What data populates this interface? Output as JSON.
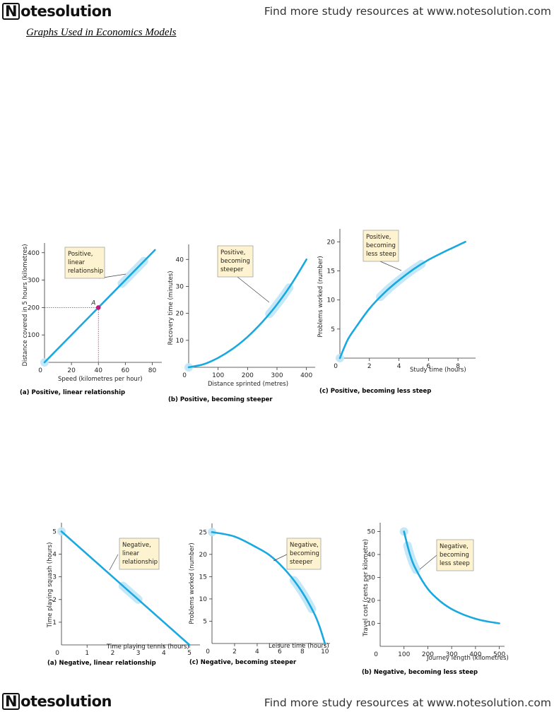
{
  "header": {
    "logo": "Notesolution",
    "promo": "Find more study resources at www.notesolution.com"
  },
  "heading": "Graphs Used in Economics Models",
  "footer": {
    "logo": "Notesolution",
    "promo": "Find more study resources at www.notesolution.com"
  },
  "colors": {
    "curve": "#19a9e0",
    "highlight": "#c2187a",
    "note_bg": "#fdf3d0",
    "glow": "#bfe6f7"
  },
  "chart_data": [
    {
      "type": "line",
      "caption": "(a) Positive, linear relationship",
      "xlabel": "Speed (kilometres per hour)",
      "ylabel": "Distance covered in 5 hours (kilometres)",
      "xticks": [
        "20",
        "40",
        "60",
        "80"
      ],
      "yticks": [
        "100",
        "200",
        "300",
        "400"
      ],
      "origin": "0",
      "note": [
        "Positive,",
        "linear",
        "relationship"
      ],
      "point_label": "A",
      "highlight_x": "40",
      "highlight_y": "200",
      "xlim": [
        0,
        85
      ],
      "ylim": [
        0,
        420
      ],
      "x": [
        0,
        82
      ],
      "y": [
        0,
        410
      ]
    },
    {
      "type": "line",
      "caption": "(b) Positive, becoming steeper",
      "xlabel": "Distance sprinted (metres)",
      "ylabel": "Recovery time (minutes)",
      "xticks": [
        "100",
        "200",
        "300",
        "400"
      ],
      "yticks": [
        "10",
        "20",
        "30",
        "40"
      ],
      "origin": "0",
      "note": [
        "Positive,",
        "becoming",
        "steeper"
      ],
      "xlim": [
        0,
        420
      ],
      "ylim": [
        0,
        44
      ],
      "x": [
        0,
        50,
        100,
        150,
        200,
        250,
        300,
        350,
        400
      ],
      "y": [
        0,
        1.1,
        3.5,
        6.9,
        11.3,
        16.8,
        23.3,
        31.0,
        40.0
      ]
    },
    {
      "type": "line",
      "caption": "(c) Positive, becoming less steep",
      "xlabel": "Study time (hours)",
      "ylabel": "Problems worked (number)",
      "xticks": [
        "2",
        "4",
        "6",
        "8"
      ],
      "yticks": [
        "5",
        "10",
        "15",
        "20"
      ],
      "origin": "0",
      "note": [
        "Positive,",
        "becoming",
        "less steep"
      ],
      "xlim": [
        0,
        9
      ],
      "ylim": [
        0,
        21.5
      ],
      "x": [
        0,
        0.5,
        1,
        2,
        3,
        4,
        5,
        6,
        7,
        8,
        8.5
      ],
      "y": [
        0,
        3.0,
        5.0,
        8.5,
        11.2,
        13.4,
        15.3,
        16.9,
        18.2,
        19.4,
        20.0
      ]
    },
    {
      "type": "line",
      "caption": "(a) Negative, linear relationship",
      "xlabel": "Time playing tennis (hours)",
      "ylabel": "Time playing squash (hours)",
      "xticks": [
        "1",
        "2",
        "3",
        "4",
        "5"
      ],
      "yticks": [
        "1",
        "2",
        "3",
        "4",
        "5"
      ],
      "origin": "0",
      "note": [
        "Negative,",
        "linear",
        "relationship"
      ],
      "xlim": [
        0,
        5.3
      ],
      "ylim": [
        0,
        5.2
      ],
      "x": [
        0,
        5
      ],
      "y": [
        5,
        0
      ]
    },
    {
      "type": "line",
      "caption": "(c) Negative, becoming steeper",
      "xlabel": "Leisure time (hours)",
      "ylabel": "Problems worked (number)",
      "xticks": [
        "2",
        "4",
        "6",
        "8",
        "10"
      ],
      "yticks": [
        "5",
        "10",
        "15",
        "20",
        "25"
      ],
      "origin": "0",
      "note": [
        "Negative,",
        "becoming",
        "steeper"
      ],
      "xlim": [
        0,
        10.2
      ],
      "ylim": [
        0,
        26
      ],
      "x": [
        0,
        2,
        4,
        5,
        6,
        7,
        8,
        9,
        9.5,
        10
      ],
      "y": [
        25,
        24,
        21.5,
        20,
        17.8,
        15,
        11.5,
        7,
        4,
        0
      ]
    },
    {
      "type": "line",
      "caption": "(b) Negative, becoming less steep",
      "xlabel": "Journey length (kilometres)",
      "ylabel": "Travel cost (cents per kilometre)",
      "xticks": [
        "100",
        "200",
        "300",
        "400",
        "500"
      ],
      "yticks": [
        "10",
        "20",
        "30",
        "40",
        "50"
      ],
      "origin": "0",
      "note": [
        "Negative,",
        "becoming",
        "less steep"
      ],
      "xlim": [
        0,
        510
      ],
      "ylim": [
        0,
        52
      ],
      "x": [
        100,
        125,
        150,
        200,
        250,
        300,
        350,
        400,
        450,
        500
      ],
      "y": [
        50,
        40,
        33.5,
        25,
        19.8,
        16.2,
        13.8,
        12,
        10.8,
        10
      ]
    }
  ]
}
